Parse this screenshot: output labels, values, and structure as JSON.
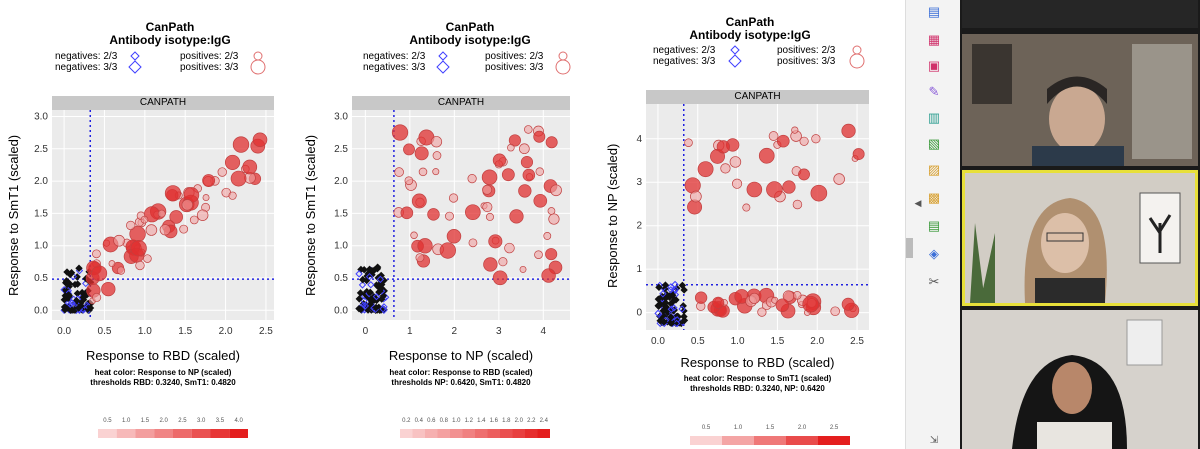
{
  "colors": {
    "accent": "#e8e03a",
    "neg": "#4040ff",
    "pos": "#e03030",
    "threshold": "#2020e0"
  },
  "plots": [
    {
      "title1": "CanPath",
      "title2": "Antibody isotype:IgG",
      "neg1": "negatives: 2/3",
      "neg2": "negatives: 3/3",
      "pos1": "positives: 2/3",
      "pos2": "positives: 3/3",
      "strip": "CANPATH",
      "xlabel": "Response to RBD (scaled)",
      "ylabel": "Response to SmT1 (scaled)",
      "note1": "heat color: Response to NP (scaled)",
      "note2": "thresholds RBD: 0.3240, SmT1: 0.4820",
      "xticks": [
        "0.0",
        "0.5",
        "1.0",
        "1.5",
        "2.0",
        "2.5"
      ],
      "yticks": [
        "0.0",
        "0.5",
        "1.0",
        "1.5",
        "2.0",
        "2.5",
        "3.0"
      ],
      "heat": [
        "0.5",
        "1.0",
        "1.5",
        "2.0",
        "2.5",
        "3.0",
        "3.5",
        "4.0"
      ]
    },
    {
      "title1": "",
      "title2": "",
      "neg1": "negatives: 2/3",
      "neg2": "negatives: 3/3",
      "pos1": "positives: 2/3",
      "pos2": "positives: 3/3",
      "strip": "CANPATH",
      "xlabel": "Response to NP (scaled)",
      "ylabel": "Response to SmT1 (scaled)",
      "note1": "heat color: Response to RBD (scaled)",
      "note2": "thresholds NP: 0.6420, SmT1: 0.4820",
      "xticks": [
        "0",
        "1",
        "2",
        "3",
        "4"
      ],
      "yticks": [
        "0.0",
        "0.5",
        "1.0",
        "1.5",
        "2.0",
        "2.5",
        "3.0"
      ],
      "heat": [
        "0.2",
        "0.4",
        "0.6",
        "0.8",
        "1.0",
        "1.2",
        "1.4",
        "1.6",
        "1.8",
        "2.0",
        "2.2",
        "2.4"
      ]
    },
    {
      "title1": "CanPath",
      "title2": "Antibody isotype:IgG",
      "neg1": "negatives: 2/3",
      "neg2": "negatives: 3/3",
      "pos1": "positives: 2/3",
      "pos2": "positives: 3/3",
      "strip": "CANPATH",
      "xlabel": "Response to RBD (scaled)",
      "ylabel": "Response to NP (scaled)",
      "note1": "heat color: Response to SmT1 (scaled)",
      "note2": "thresholds RBD: 0.3240, NP: 0.6420",
      "xticks": [
        "0.0",
        "0.5",
        "1.0",
        "1.5",
        "2.0",
        "2.5"
      ],
      "yticks": [
        "0",
        "1",
        "2",
        "3",
        "4"
      ],
      "heat": [
        "0.5",
        "1.0",
        "1.5",
        "2.0",
        "2.5"
      ]
    }
  ]
}
